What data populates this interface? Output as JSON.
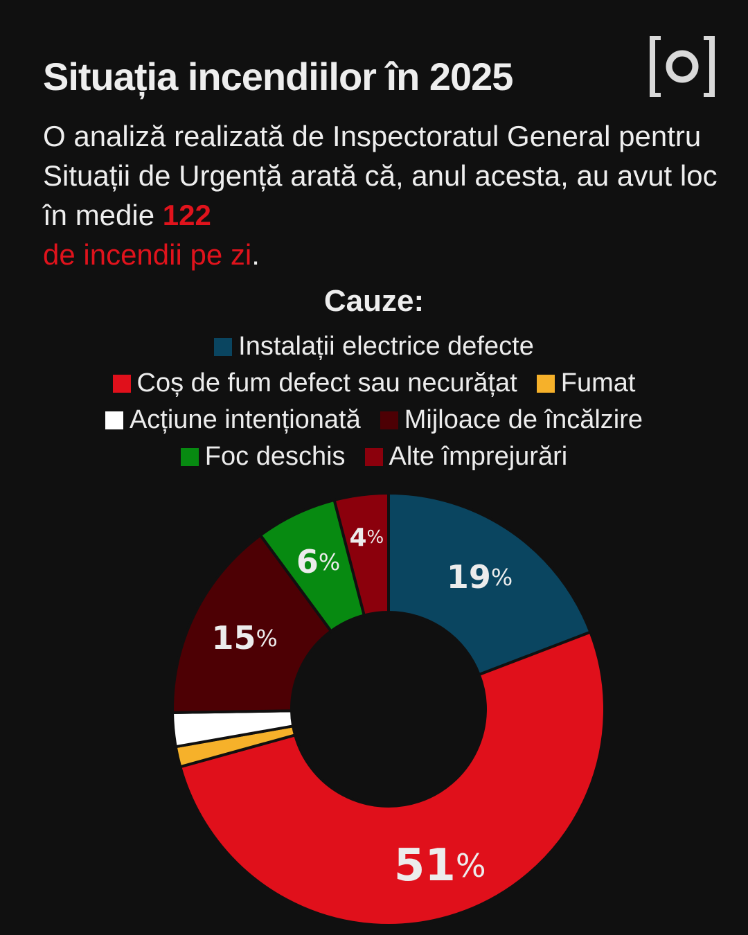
{
  "header": {
    "title": "Situația incendiilor în 2025",
    "logo_icon": "bracket-o-logo-icon"
  },
  "intro": {
    "line_parts": [
      "O analiză realizată de Inspectoratul General pentru Situații de Urgență arată că, anul acesta, au avut loc în medie ",
      "122",
      "de incendii pe zi",
      "."
    ]
  },
  "causes_title": "Cauze:",
  "legend": [
    {
      "label": "Instalații electrice defecte",
      "color": "#0a4560"
    },
    {
      "label": "Coș de fum defect sau necurățat",
      "color": "#e0101b"
    },
    {
      "label": "Fumat",
      "color": "#f6b12a"
    },
    {
      "label": "Acțiune intenționată",
      "color": "#ffffff"
    },
    {
      "label": "Mijloace de încălzire",
      "color": "#4d0004"
    },
    {
      "label": "Foc deschis",
      "color": "#078a11"
    },
    {
      "label": "Alte împrejurări",
      "color": "#8b000c"
    }
  ],
  "chart_data": {
    "type": "pie",
    "variant": "donut",
    "title": "Cauze:",
    "categories": [
      "Instalații electrice defecte",
      "Coș de fum defect sau necurățat",
      "Fumat",
      "Acțiune intenționată",
      "Mijloace de încălzire",
      "Foc deschis",
      "Alte împrejurări"
    ],
    "values": [
      19,
      51,
      1.5,
      2.5,
      15,
      6,
      4
    ],
    "labels": [
      "19%",
      "51%",
      "",
      "",
      "15%",
      "6%",
      "4%"
    ],
    "colors": [
      "#0a4560",
      "#e0101b",
      "#f6b12a",
      "#ffffff",
      "#4d0004",
      "#078a11",
      "#8b000c"
    ],
    "unit": "%",
    "legend_position": "top",
    "start_angle_deg": 0,
    "direction": "clockwise"
  }
}
